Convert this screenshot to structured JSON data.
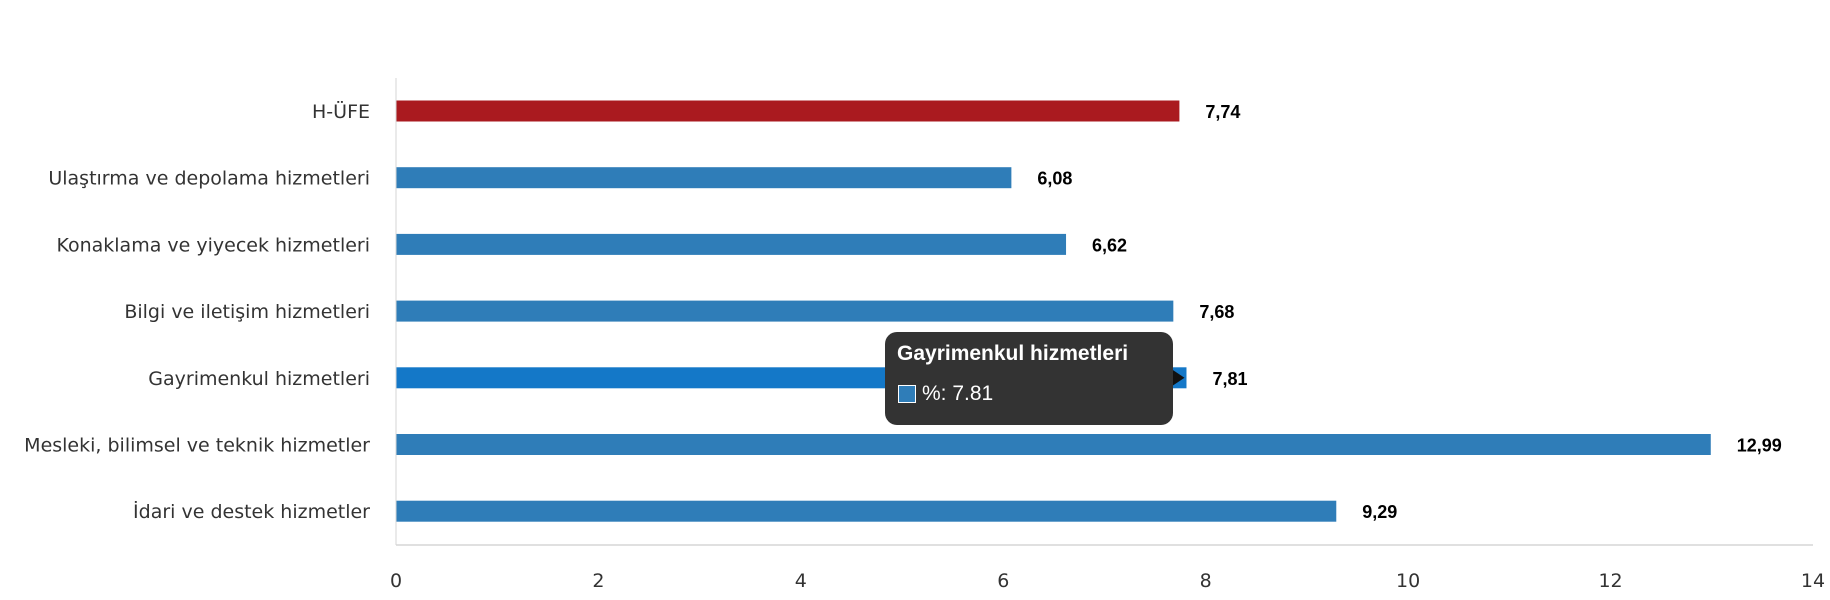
{
  "chart_data": {
    "type": "bar",
    "orientation": "horizontal",
    "categories": [
      "H-ÜFE",
      "Ulaştırma ve depolama hizmetleri",
      "Konaklama ve yiyecek hizmetleri",
      "Bilgi ve iletişim hizmetleri",
      "Gayrimenkul hizmetleri",
      "Mesleki, bilimsel ve teknik hizmetler",
      "İdari ve destek hizmetler"
    ],
    "values": [
      7.74,
      6.08,
      6.62,
      7.68,
      7.81,
      12.99,
      9.29
    ],
    "value_labels": [
      "7,74",
      "6,08",
      "6,62",
      "7,68",
      "7,81",
      "12,99",
      "9,29"
    ],
    "xlim": [
      0,
      14
    ],
    "x_ticks": [
      "0",
      "2",
      "4",
      "6",
      "8",
      "10",
      "12",
      "14"
    ],
    "title": "",
    "xlabel": "",
    "ylabel": "",
    "grid": false,
    "legend": "none",
    "colors": {
      "default_bar": "#2f7db8",
      "highlight_bar": "#aa1a1f",
      "hover_bar": "#1478c8",
      "axis_line": "#d6d6d6"
    },
    "highlight_index": 0,
    "hover_index": 4
  },
  "tooltip": {
    "title": "Gayrimenkul hizmetleri",
    "value_text": "%: 7.81",
    "swatch_color": "#2f7db8",
    "background": "#333333"
  }
}
